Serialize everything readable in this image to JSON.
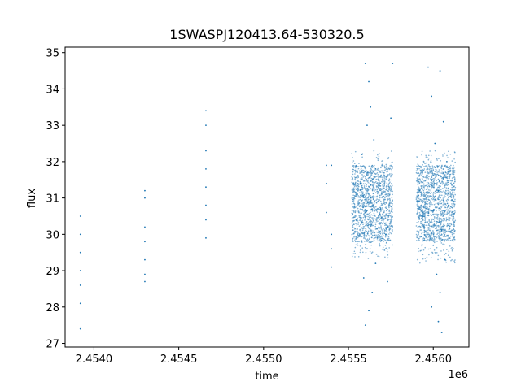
{
  "chart_data": {
    "type": "scatter",
    "title": "1SWASPJ120413.64-530320.5",
    "xlabel": "time",
    "ylabel": "flux",
    "x_offset_label": "1e6",
    "xlim": [
      2.45383,
      2.45621
    ],
    "ylim": [
      26.9,
      35.15
    ],
    "x_ticks": [
      2.454,
      2.4545,
      2.455,
      2.4555,
      2.456
    ],
    "x_tick_labels": [
      "2.4540",
      "2.4545",
      "2.4550",
      "2.4555",
      "2.4560"
    ],
    "y_ticks": [
      27,
      28,
      29,
      30,
      31,
      32,
      33,
      34,
      35
    ],
    "y_tick_labels": [
      "27",
      "28",
      "29",
      "30",
      "31",
      "32",
      "33",
      "34",
      "35"
    ],
    "grid": false,
    "legend": "none",
    "marker_color": "#1f77b4",
    "points": [
      [
        2.45392,
        30.5
      ],
      [
        2.45392,
        30.0
      ],
      [
        2.45392,
        29.5
      ],
      [
        2.45392,
        29.0
      ],
      [
        2.45392,
        28.6
      ],
      [
        2.45392,
        28.1
      ],
      [
        2.45392,
        27.4
      ],
      [
        2.4543,
        31.2
      ],
      [
        2.4543,
        31.0
      ],
      [
        2.4543,
        30.2
      ],
      [
        2.4543,
        29.8
      ],
      [
        2.4543,
        29.3
      ],
      [
        2.4543,
        28.9
      ],
      [
        2.4543,
        28.7
      ],
      [
        2.45466,
        33.4
      ],
      [
        2.45466,
        33.0
      ],
      [
        2.45466,
        32.3
      ],
      [
        2.45466,
        31.8
      ],
      [
        2.45466,
        31.3
      ],
      [
        2.45466,
        30.8
      ],
      [
        2.45466,
        30.4
      ],
      [
        2.45466,
        29.9
      ],
      [
        2.45537,
        31.9
      ],
      [
        2.45537,
        31.4
      ],
      [
        2.45537,
        30.6
      ],
      [
        2.4554,
        31.9
      ],
      [
        2.4554,
        30.0
      ],
      [
        2.4554,
        29.6
      ],
      [
        2.4554,
        29.1
      ],
      [
        2.4556,
        34.7
      ],
      [
        2.45562,
        34.2
      ],
      [
        2.45563,
        33.5
      ],
      [
        2.45561,
        33.0
      ],
      [
        2.45565,
        32.6
      ],
      [
        2.45558,
        32.2
      ],
      [
        2.45566,
        31.8
      ],
      [
        2.45557,
        31.4
      ],
      [
        2.45563,
        31.0
      ],
      [
        2.45569,
        30.7
      ],
      [
        2.45555,
        30.4
      ],
      [
        2.45572,
        30.0
      ],
      [
        2.45561,
        29.6
      ],
      [
        2.45566,
        29.2
      ],
      [
        2.45559,
        28.8
      ],
      [
        2.45564,
        28.4
      ],
      [
        2.45562,
        27.9
      ],
      [
        2.4556,
        27.5
      ],
      [
        2.45573,
        28.7
      ],
      [
        2.45575,
        33.2
      ],
      [
        2.45576,
        34.7
      ],
      [
        2.45597,
        34.6
      ],
      [
        2.45599,
        33.8
      ],
      [
        2.45604,
        34.5
      ],
      [
        2.45606,
        33.1
      ],
      [
        2.45601,
        32.5
      ],
      [
        2.45608,
        32.0
      ],
      [
        2.45596,
        31.6
      ],
      [
        2.45603,
        31.2
      ],
      [
        2.45609,
        30.8
      ],
      [
        2.45594,
        30.5
      ],
      [
        2.45605,
        30.1
      ],
      [
        2.456,
        29.7
      ],
      [
        2.45607,
        29.3
      ],
      [
        2.45602,
        28.9
      ],
      [
        2.45604,
        28.4
      ],
      [
        2.45599,
        28.0
      ],
      [
        2.45603,
        27.6
      ],
      [
        2.45605,
        27.3
      ],
      [
        2.45612,
        30.9
      ],
      [
        2.45592,
        31.2
      ]
    ],
    "dense_bands": [
      {
        "x_start": 2.45552,
        "x_end": 2.45576,
        "y_low": 29.3,
        "y_high": 32.3,
        "core_low": 29.8,
        "core_high": 31.9
      },
      {
        "x_start": 2.4559,
        "x_end": 2.45613,
        "y_low": 29.2,
        "y_high": 32.3,
        "core_low": 29.8,
        "core_high": 31.9
      }
    ]
  }
}
